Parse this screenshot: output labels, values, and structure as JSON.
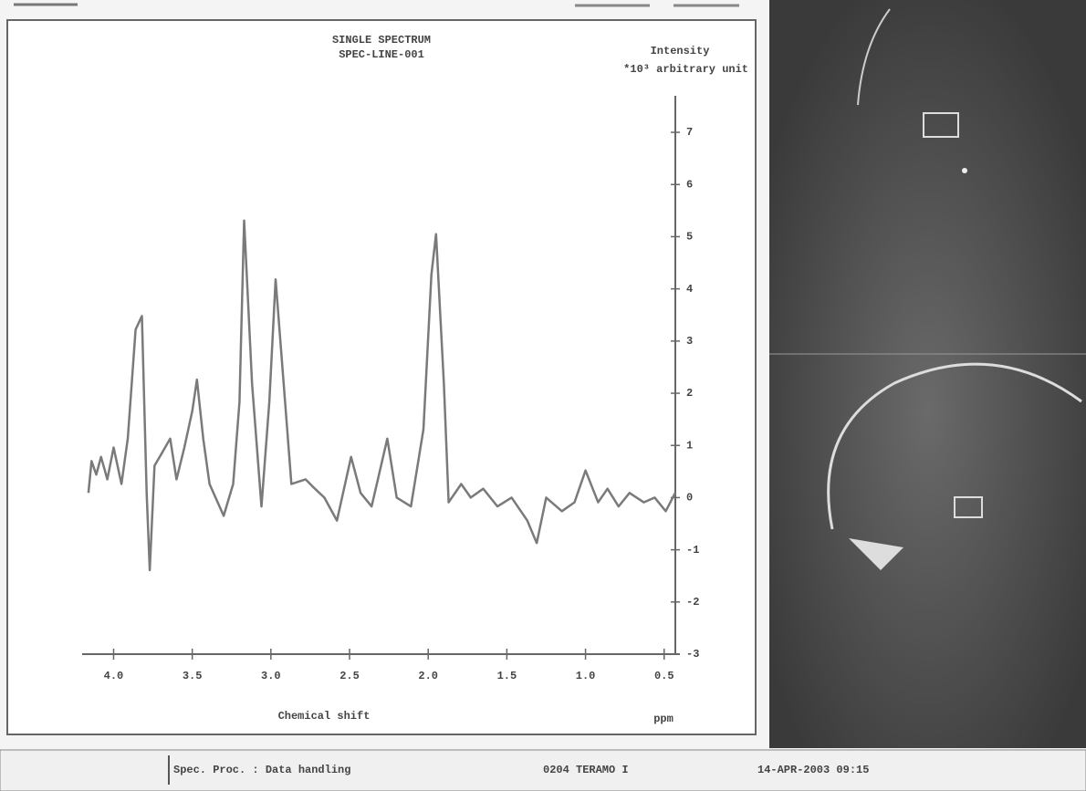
{
  "chart_data": {
    "type": "line",
    "title": "SINGLE SPECTRUM",
    "subtitle": "SPEC-LINE-001",
    "y_label": "Intensity",
    "y_unit": "*10³ arbitrary unit",
    "x_label": "Chemical shift",
    "x_unit": "ppm",
    "color": "#7a7a7a",
    "x": [
      4.16,
      4.14,
      4.11,
      4.08,
      4.04,
      4.0,
      3.95,
      3.91,
      3.86,
      3.82,
      3.79,
      3.77,
      3.74,
      3.69,
      3.64,
      3.6,
      3.55,
      3.5,
      3.47,
      3.43,
      3.39,
      3.3,
      3.24,
      3.2,
      3.17,
      3.12,
      3.06,
      3.01,
      2.97,
      2.91,
      2.87,
      2.78,
      2.72,
      2.66,
      2.58,
      2.49,
      2.43,
      2.36,
      2.26,
      2.2,
      2.11,
      2.03,
      1.98,
      1.95,
      1.9,
      1.87,
      1.79,
      1.73,
      1.65,
      1.56,
      1.47,
      1.37,
      1.31,
      1.25,
      1.15,
      1.07,
      1.0,
      0.92,
      0.86,
      0.79,
      0.72,
      0.63,
      0.56,
      0.49,
      0.43
    ],
    "values": [
      0.09,
      0.7,
      0.44,
      0.78,
      0.35,
      0.96,
      0.26,
      1.13,
      3.22,
      3.48,
      0.09,
      -1.39,
      0.61,
      0.87,
      1.13,
      0.35,
      0.96,
      1.66,
      2.26,
      1.13,
      0.26,
      -0.35,
      0.26,
      1.83,
      5.31,
      2.18,
      -0.17,
      1.83,
      4.18,
      1.83,
      0.26,
      0.35,
      0.17,
      0,
      -0.44,
      0.78,
      0.09,
      -0.17,
      1.13,
      0,
      -0.17,
      1.31,
      4.27,
      5.05,
      2.18,
      -0.09,
      0.26,
      0,
      0.17,
      -0.17,
      0,
      -0.44,
      -0.87,
      0,
      -0.26,
      -0.09,
      0.52,
      -0.09,
      0.17,
      -0.17,
      0.09,
      -0.09,
      0,
      -0.26,
      0.09
    ],
    "xlim": [
      4.2,
      0.4
    ],
    "xticks": [
      {
        "value": 4,
        "label": "4.0"
      },
      3.5,
      {
        "value": 3,
        "label": "3.0"
      },
      2.5,
      {
        "value": 2,
        "label": "2.0"
      },
      1.5,
      {
        "value": 1,
        "label": "1.0"
      },
      0.5
    ],
    "ylim": [
      -3,
      7.7
    ],
    "yticks": [
      -3,
      -2,
      -1,
      0,
      1,
      2,
      3,
      4,
      5,
      6,
      7
    ]
  },
  "status_bar": {
    "left": "Spec. Proc. : Data handling",
    "center": "0204 TERAMO I",
    "right": "14-APR-2003 09:15"
  }
}
